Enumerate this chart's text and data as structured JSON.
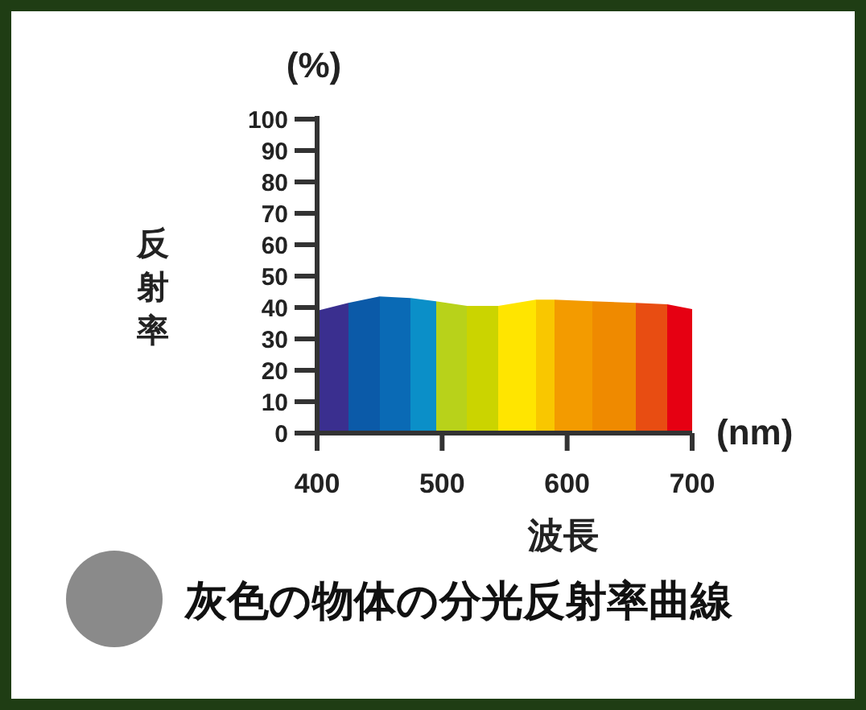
{
  "chart_data": {
    "type": "area",
    "title": "灰色の物体の分光反射率曲線",
    "xlabel": "波長",
    "ylabel": "反射率",
    "annotations": [
      "(%)",
      "(nm)"
    ],
    "x": [
      400,
      425,
      450,
      475,
      495,
      520,
      545,
      575,
      590,
      620,
      655,
      680,
      700
    ],
    "values": [
      39,
      41.5,
      43.5,
      43,
      42,
      40.5,
      40.5,
      42.5,
      42.5,
      42,
      41.5,
      41,
      39.5
    ],
    "colors": [
      "#3a2f8f",
      "#0b5aa8",
      "#0a6ab5",
      "#0b8fc8",
      "#b8d21a",
      "#cbd400",
      "#ffe500",
      "#f9c700",
      "#f39b00",
      "#ef8a00",
      "#e84d12",
      "#e60012",
      "#e60012"
    ],
    "xlim": [
      400,
      700
    ],
    "xticks": [
      400,
      500,
      600,
      700
    ],
    "ylim": [
      0,
      100
    ],
    "yticks": [
      0,
      10,
      20,
      30,
      40,
      50,
      60,
      70,
      80,
      90,
      100
    ],
    "grid": false
  }
}
